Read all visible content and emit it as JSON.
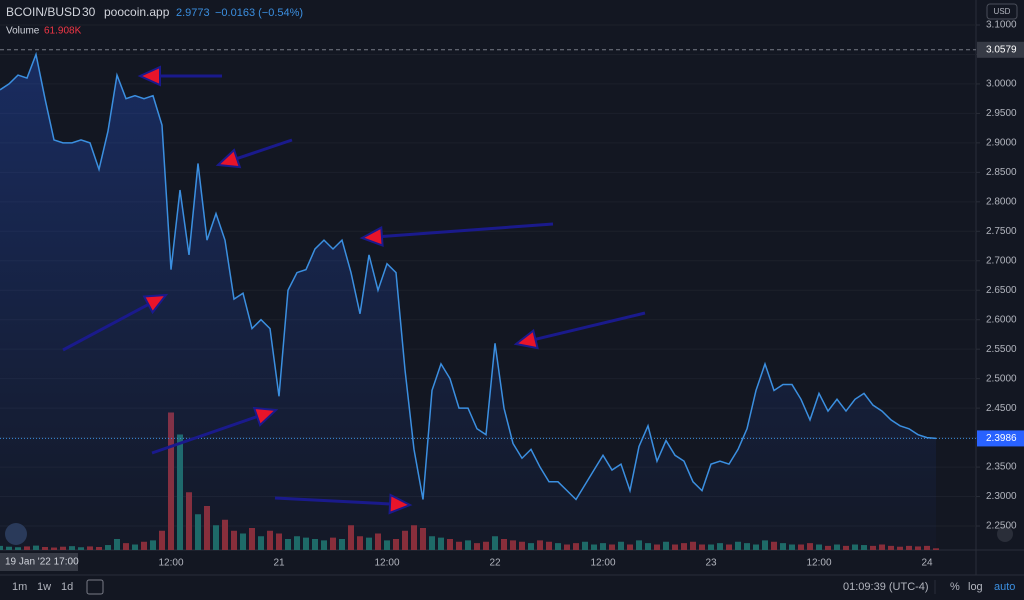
{
  "header": {
    "symbol": "BCOIN/BUSD",
    "interval": "30",
    "source": "poocoin.app",
    "last": "2.9773",
    "change": "−0.0163 (−0.54%)",
    "currency": "USD"
  },
  "footer": {
    "crosshair_time": "19 Jan '22  17:00",
    "ranges": [
      "1m",
      "1w",
      "1d"
    ],
    "clock": "01:09:39 (UTC-4)",
    "options": [
      "%",
      "log",
      "auto"
    ]
  },
  "chart_data": {
    "type": "line",
    "categories": [
      null,
      null,
      null,
      null,
      null,
      null,
      null,
      null,
      null,
      null,
      null,
      null,
      null,
      null,
      null,
      null,
      null,
      null,
      null,
      "12:00",
      null,
      null,
      null,
      null,
      null,
      null,
      null,
      null,
      null,
      null,
      null,
      "21",
      null,
      null,
      null,
      null,
      null,
      null,
      null,
      null,
      null,
      null,
      null,
      "12:00",
      null,
      null,
      null,
      null,
      null,
      null,
      null,
      null,
      null,
      null,
      null,
      "22",
      null,
      null,
      null,
      null,
      null,
      null,
      null,
      null,
      null,
      null,
      null,
      "12:00",
      null,
      null,
      null,
      null,
      null,
      null,
      null,
      null,
      null,
      null,
      null,
      "23",
      null,
      null,
      null,
      null,
      null,
      null,
      null,
      null,
      null,
      null,
      null,
      "12:00",
      null,
      null,
      null,
      null,
      null,
      null,
      null,
      null,
      null,
      null,
      null,
      "24",
      null
    ],
    "series": [
      {
        "name": "BCOIN/BUSD",
        "color": "#3b8fe0",
        "values": [
          2.99,
          3.0,
          3.015,
          3.01,
          3.05,
          2.975,
          2.905,
          2.9,
          2.9,
          2.905,
          2.9,
          2.855,
          2.92,
          3.015,
          2.975,
          2.98,
          2.975,
          2.98,
          2.93,
          2.685,
          2.82,
          2.71,
          2.865,
          2.735,
          2.78,
          2.735,
          2.635,
          2.645,
          2.585,
          2.6,
          2.585,
          2.47,
          2.65,
          2.68,
          2.685,
          2.72,
          2.735,
          2.72,
          2.735,
          2.68,
          2.61,
          2.71,
          2.65,
          2.695,
          2.68,
          2.515,
          2.38,
          2.295,
          2.48,
          2.525,
          2.5,
          2.45,
          2.45,
          2.415,
          2.405,
          2.56,
          2.45,
          2.39,
          2.365,
          2.38,
          2.35,
          2.325,
          2.325,
          2.31,
          2.295,
          2.32,
          2.345,
          2.37,
          2.345,
          2.355,
          2.31,
          2.385,
          2.42,
          2.36,
          2.395,
          2.37,
          2.36,
          2.325,
          2.31,
          2.355,
          2.36,
          2.355,
          2.38,
          2.415,
          2.48,
          2.525,
          2.48,
          2.49,
          2.49,
          2.465,
          2.43,
          2.475,
          2.445,
          2.465,
          2.445,
          2.465,
          2.475,
          2.455,
          2.445,
          2.43,
          2.42,
          2.415,
          2.405,
          2.4,
          2.3986
        ]
      }
    ],
    "volume": {
      "name": "Volume",
      "up_color": "#1e6a64",
      "down_color": "#8a2d36",
      "last_label": "61.908K",
      "vlim": [
        0,
        6000
      ],
      "values": [
        150,
        120,
        100,
        130,
        160,
        110,
        90,
        120,
        140,
        100,
        130,
        110,
        180,
        400,
        250,
        200,
        300,
        350,
        700,
        5000,
        4200,
        2100,
        1300,
        1600,
        900,
        1100,
        700,
        600,
        800,
        500,
        700,
        600,
        400,
        500,
        450,
        400,
        350,
        450,
        400,
        900,
        500,
        450,
        600,
        350,
        400,
        700,
        900,
        800,
        500,
        450,
        400,
        300,
        350,
        250,
        300,
        500,
        400,
        350,
        300,
        250,
        350,
        300,
        250,
        200,
        250,
        300,
        200,
        250,
        200,
        300,
        200,
        350,
        250,
        200,
        300,
        200,
        250,
        300,
        200,
        200,
        250,
        200,
        300,
        250,
        200,
        350,
        300,
        250,
        200,
        200,
        250,
        200,
        150,
        200,
        150,
        200,
        180,
        150,
        200,
        150,
        120,
        150,
        130,
        150,
        61.908
      ]
    },
    "high_line": 3.0579,
    "ylim": [
      2.2127,
      3.1424
    ],
    "yticks": [
      {
        "value": 2.25,
        "label": "2.2500"
      },
      {
        "value": 2.3,
        "label": "2.3000"
      },
      {
        "value": 2.35,
        "label": "2.3500"
      },
      {
        "value": 2.4,
        "label": "2.4000"
      },
      {
        "value": 2.45,
        "label": "2.4500"
      },
      {
        "value": 2.5,
        "label": "2.5000"
      },
      {
        "value": 2.55,
        "label": "2.5500"
      },
      {
        "value": 2.6,
        "label": "2.6000"
      },
      {
        "value": 2.65,
        "label": "2.6500"
      },
      {
        "value": 2.7,
        "label": "2.7000"
      },
      {
        "value": 2.75,
        "label": "2.7500"
      },
      {
        "value": 2.8,
        "label": "2.8000"
      },
      {
        "value": 2.85,
        "label": "2.8500"
      },
      {
        "value": 2.9,
        "label": "2.9000"
      },
      {
        "value": 2.95,
        "label": "2.9500"
      },
      {
        "value": 3.0,
        "label": "3.0000"
      },
      {
        "value": 3.05,
        "label": "3.0500"
      },
      {
        "value": 3.1,
        "label": "3.1000"
      }
    ],
    "grid": true
  }
}
